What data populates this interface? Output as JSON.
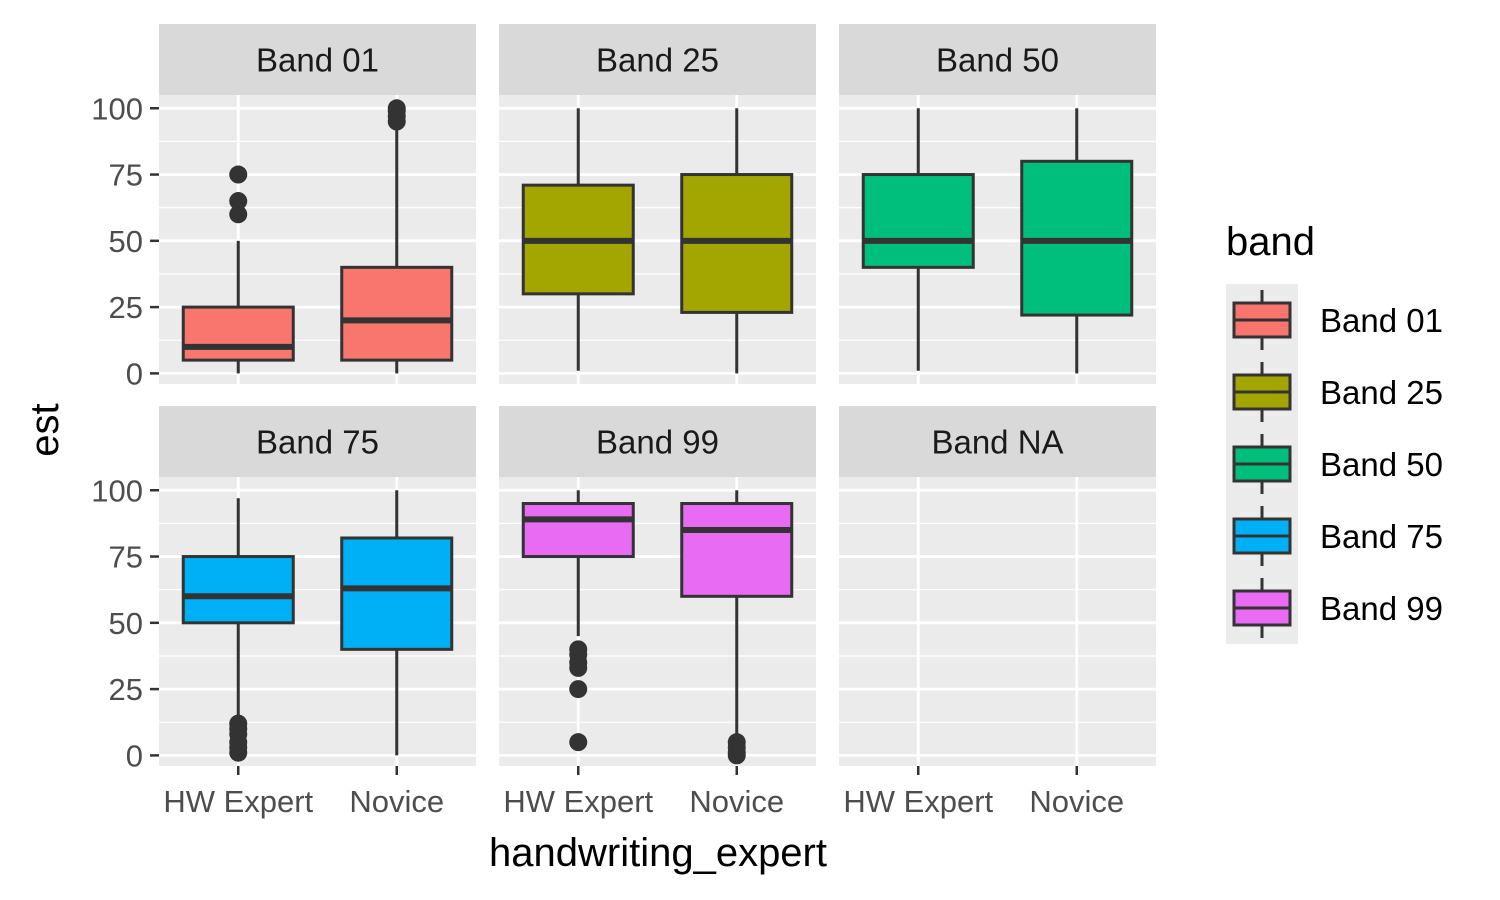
{
  "chart_data": {
    "type": "boxplot",
    "facet_by": "band",
    "panels": [
      "Band 01",
      "Band 25",
      "Band 50",
      "Band 75",
      "Band 99",
      "Band NA"
    ],
    "categories": [
      "HW Expert",
      "Novice"
    ],
    "xlabel": "handwriting_expert",
    "ylabel": "est",
    "ylim": [
      -4,
      105
    ],
    "yticks": [
      0,
      25,
      50,
      75,
      100
    ],
    "grid": true,
    "legend": {
      "title": "band",
      "position": "right",
      "entries": [
        {
          "label": "Band 01",
          "color": "#F8766D"
        },
        {
          "label": "Band 25",
          "color": "#A3A500"
        },
        {
          "label": "Band 50",
          "color": "#00BF7D"
        },
        {
          "label": "Band 75",
          "color": "#00B0F6"
        },
        {
          "label": "Band 99",
          "color": "#E76BF3"
        }
      ]
    },
    "boxes": [
      {
        "panel": "Band 01",
        "category": "HW Expert",
        "color": "#F8766D",
        "min": 0,
        "q1": 5,
        "median": 10,
        "q3": 25,
        "max": 50,
        "outliers": [
          60,
          65,
          75
        ]
      },
      {
        "panel": "Band 01",
        "category": "Novice",
        "color": "#F8766D",
        "min": 0,
        "q1": 5,
        "median": 20,
        "q3": 40,
        "max": 93,
        "outliers": [
          95,
          97,
          99,
          100
        ]
      },
      {
        "panel": "Band 25",
        "category": "HW Expert",
        "color": "#A3A500",
        "min": 1,
        "q1": 30,
        "median": 50,
        "q3": 71,
        "max": 100,
        "outliers": []
      },
      {
        "panel": "Band 25",
        "category": "Novice",
        "color": "#A3A500",
        "min": 0,
        "q1": 23,
        "median": 50,
        "q3": 75,
        "max": 100,
        "outliers": []
      },
      {
        "panel": "Band 50",
        "category": "HW Expert",
        "color": "#00BF7D",
        "min": 1,
        "q1": 40,
        "median": 50,
        "q3": 75,
        "max": 100,
        "outliers": []
      },
      {
        "panel": "Band 50",
        "category": "Novice",
        "color": "#00BF7D",
        "min": 0,
        "q1": 22,
        "median": 50,
        "q3": 80,
        "max": 100,
        "outliers": []
      },
      {
        "panel": "Band 75",
        "category": "HW Expert",
        "color": "#00B0F6",
        "min": 15,
        "q1": 50,
        "median": 60,
        "q3": 75,
        "max": 97,
        "outliers": [
          1,
          3,
          5,
          8,
          10,
          12
        ]
      },
      {
        "panel": "Band 75",
        "category": "Novice",
        "color": "#00B0F6",
        "min": 0,
        "q1": 40,
        "median": 63,
        "q3": 82,
        "max": 100,
        "outliers": []
      },
      {
        "panel": "Band 99",
        "category": "HW Expert",
        "color": "#E76BF3",
        "min": 45,
        "q1": 75,
        "median": 89,
        "q3": 95,
        "max": 100,
        "outliers": [
          5,
          25,
          33,
          35,
          38,
          40
        ]
      },
      {
        "panel": "Band 99",
        "category": "Novice",
        "color": "#E76BF3",
        "min": 7,
        "q1": 60,
        "median": 85,
        "q3": 95,
        "max": 100,
        "outliers": [
          0,
          1,
          3,
          5
        ]
      }
    ]
  }
}
